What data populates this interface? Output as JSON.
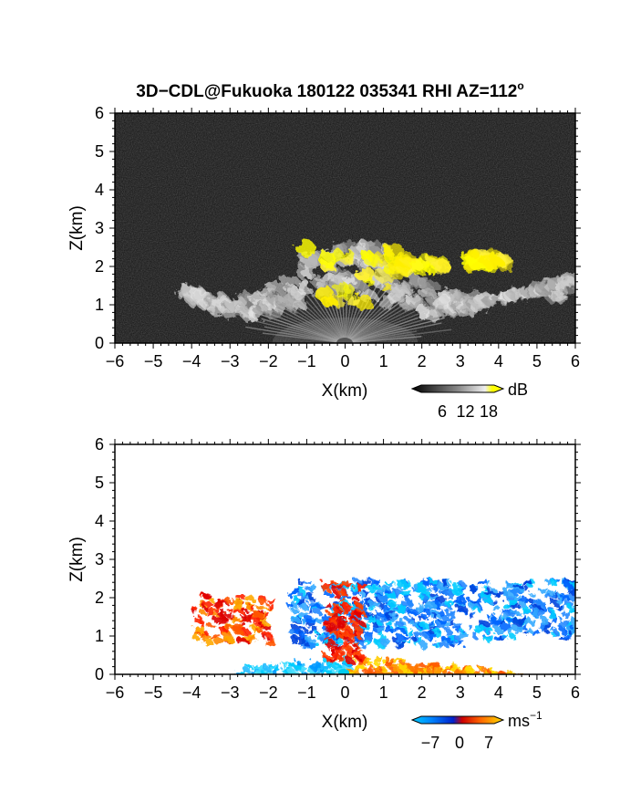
{
  "figure": {
    "title": "3D−CDL@Fukuoka 180122 035341 RHI AZ=112",
    "title_superscript": "o"
  },
  "chart_data": [
    {
      "type": "heatmap",
      "name": "reflectivity-panel",
      "xlabel": "X(km)",
      "ylabel": "Z(km)",
      "xlim": [
        -6,
        6
      ],
      "ylim": [
        0,
        6
      ],
      "xticks": [
        -6,
        -5,
        -4,
        -3,
        -2,
        -1,
        0,
        1,
        2,
        3,
        4,
        5,
        6
      ],
      "yticks": [
        0,
        1,
        2,
        3,
        4,
        5,
        6
      ],
      "xtick_labels": [
        "−6",
        "−5",
        "−4",
        "−3",
        "−2",
        "−1",
        "0",
        "1",
        "2",
        "3",
        "4",
        "5",
        "6"
      ],
      "ytick_labels": [
        "0",
        "1",
        "2",
        "3",
        "4",
        "5",
        "6"
      ],
      "colorbar": {
        "unit": "dB",
        "ticks": [
          6,
          12,
          18
        ],
        "tick_labels": [
          "6",
          "12",
          "18"
        ],
        "colors": [
          "#000000",
          "#444444",
          "#888888",
          "#bbbbbb",
          "#eeeeee",
          "#ffff00"
        ]
      },
      "features": [
        {
          "kind": "cloud-layer",
          "x_range": [
            -4.2,
            5.9
          ],
          "z_range": [
            1.0,
            2.6
          ]
        },
        {
          "kind": "strong-echo",
          "x_range": [
            -1.2,
            1.4
          ],
          "z_range": [
            1.0,
            2.5
          ]
        },
        {
          "kind": "strong-echo",
          "x_range": [
            1.4,
            2.6
          ],
          "z_range": [
            1.9,
            2.2
          ]
        },
        {
          "kind": "strong-echo",
          "x_range": [
            3.2,
            4.2
          ],
          "z_range": [
            2.0,
            2.3
          ]
        }
      ]
    },
    {
      "type": "heatmap",
      "name": "velocity-panel",
      "xlabel": "X(km)",
      "ylabel": "Z(km)",
      "xlim": [
        -6,
        6
      ],
      "ylim": [
        0,
        6
      ],
      "xticks": [
        -6,
        -5,
        -4,
        -3,
        -2,
        -1,
        0,
        1,
        2,
        3,
        4,
        5,
        6
      ],
      "yticks": [
        0,
        1,
        2,
        3,
        4,
        5,
        6
      ],
      "xtick_labels": [
        "−6",
        "−5",
        "−4",
        "−3",
        "−2",
        "−1",
        "0",
        "1",
        "2",
        "3",
        "4",
        "5",
        "6"
      ],
      "ytick_labels": [
        "0",
        "1",
        "2",
        "3",
        "4",
        "5",
        "6"
      ],
      "colorbar": {
        "unit": "ms",
        "unit_superscript": "−1",
        "ticks": [
          -7,
          0,
          7
        ],
        "tick_labels": [
          "−7",
          "0",
          "7"
        ],
        "colors": [
          "#00ccff",
          "#0066ff",
          "#0022cc",
          "#cc0000",
          "#ff4400",
          "#ff9900",
          "#ffdd00"
        ]
      },
      "features": [
        {
          "kind": "negative-velocity",
          "x_range": [
            -3.0,
            0.0
          ],
          "z_range": [
            0.0,
            0.5
          ]
        },
        {
          "kind": "positive-velocity",
          "x_range": [
            0.0,
            4.5
          ],
          "z_range": [
            0.0,
            0.6
          ]
        },
        {
          "kind": "positive-velocity",
          "x_range": [
            -4.0,
            -2.0
          ],
          "z_range": [
            0.9,
            2.1
          ]
        },
        {
          "kind": "negative-velocity",
          "x_range": [
            -1.5,
            3.0
          ],
          "z_range": [
            0.8,
            2.5
          ]
        },
        {
          "kind": "negative-velocity",
          "x_range": [
            3.2,
            5.9
          ],
          "z_range": [
            1.0,
            2.5
          ]
        }
      ]
    }
  ]
}
